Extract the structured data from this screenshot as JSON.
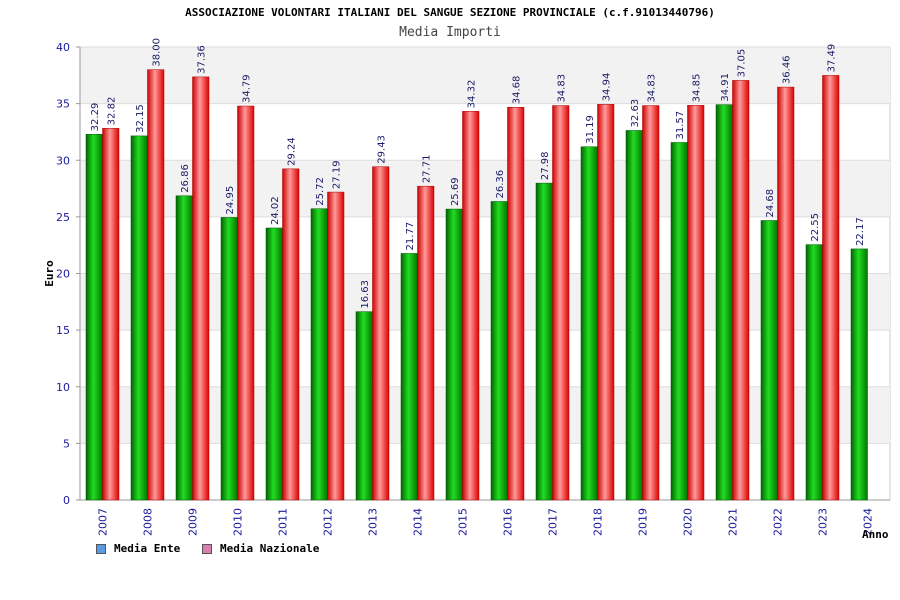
{
  "chart_data": {
    "type": "bar",
    "title": "ASSOCIAZIONE VOLONTARI ITALIANI DEL SANGUE SEZIONE PROVINCIALE (c.f.91013440796)",
    "subtitle": "Media Importi",
    "xlabel": "Anno",
    "ylabel": "Euro",
    "ylim": [
      0,
      40
    ],
    "yticks": [
      0,
      5,
      10,
      15,
      20,
      25,
      30,
      35,
      40
    ],
    "grid": true,
    "legend_position": "bottom-left",
    "categories": [
      "2007",
      "2008",
      "2009",
      "2010",
      "2011",
      "2012",
      "2013",
      "2014",
      "2015",
      "2016",
      "2017",
      "2018",
      "2019",
      "2020",
      "2021",
      "2022",
      "2023",
      "2024"
    ],
    "series": [
      {
        "name": "Media Ente",
        "legend_color": "#5b9be3",
        "bar_color": "#00aa00",
        "values": [
          32.29,
          32.15,
          26.86,
          24.95,
          24.02,
          25.72,
          16.63,
          21.77,
          25.69,
          26.36,
          27.98,
          31.19,
          32.63,
          31.57,
          34.91,
          24.68,
          22.55,
          22.17
        ],
        "labels": [
          "32.29",
          "32.15",
          "26.86",
          "24.95",
          "24.02",
          "25.72",
          "16.63",
          "21.77",
          "25.69",
          "26.36",
          "27.98",
          "31.19",
          "32.63",
          "31.57",
          "34.91",
          "24.68",
          "22.55",
          "22.17"
        ]
      },
      {
        "name": "Media Nazionale",
        "legend_color": "#d87fb0",
        "bar_color": "#ee1111",
        "values": [
          32.82,
          38.0,
          37.36,
          34.79,
          29.24,
          27.19,
          29.43,
          27.71,
          34.32,
          34.68,
          34.83,
          34.94,
          34.83,
          34.85,
          37.05,
          36.46,
          37.49,
          null
        ],
        "labels": [
          "32.82",
          "38.00",
          "37.36",
          "34.79",
          "29.24",
          "27.19",
          "29.43",
          "27.71",
          "34.32",
          "34.68",
          "34.83",
          "34.94",
          "34.83",
          "34.85",
          "37.05",
          "36.46",
          "37.49",
          ""
        ]
      }
    ]
  }
}
